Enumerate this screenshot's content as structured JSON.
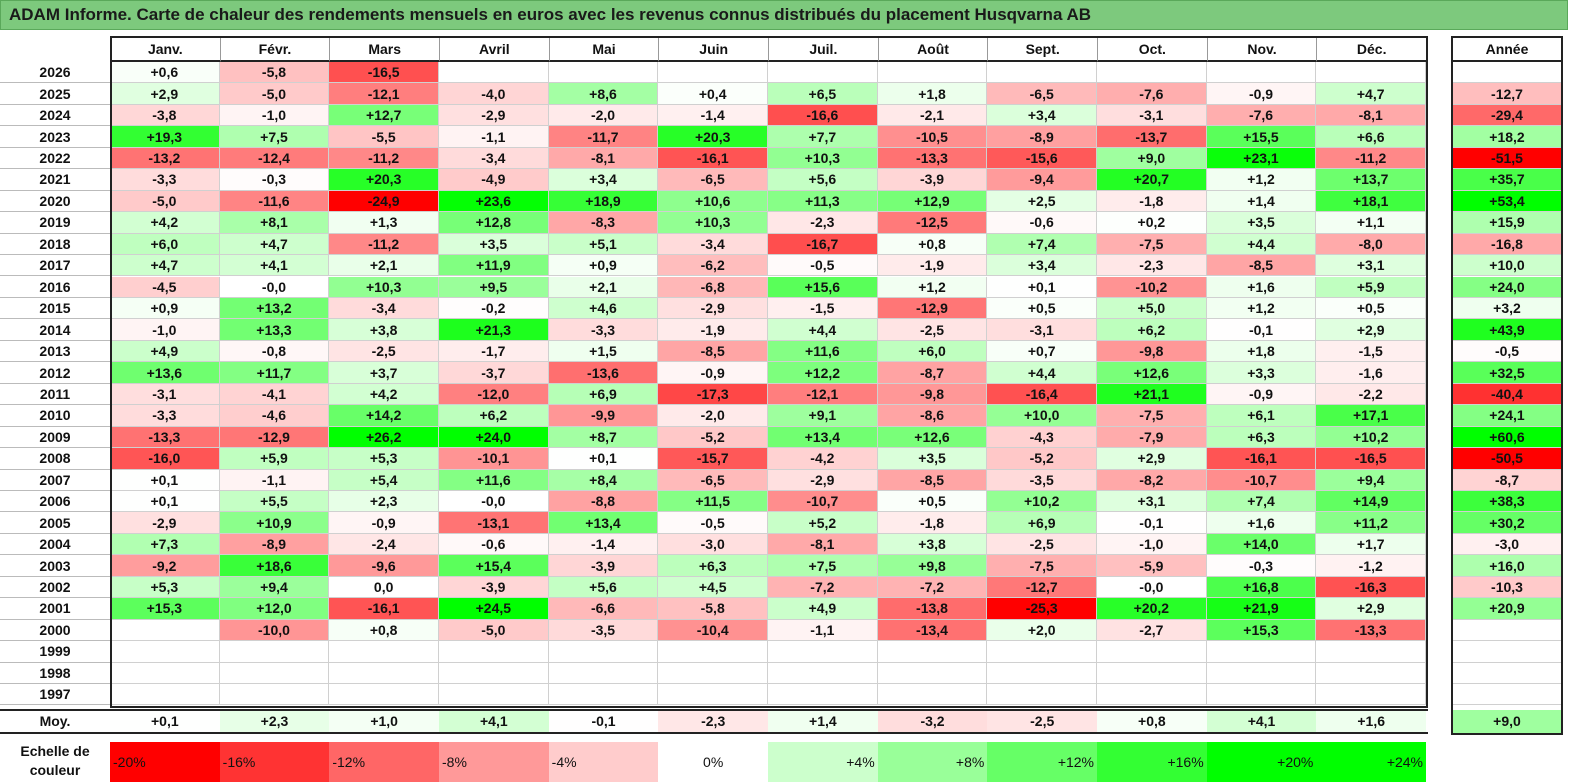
{
  "title": "ADAM Informe. Carte de chaleur des rendements mensuels en euros avec les revenus connus distribués du placement Husqvarna AB",
  "chart_data": {
    "type": "heatmap",
    "title": "ADAM Informe. Carte de chaleur des rendements mensuels en euros avec les revenus connus distribués du placement Husqvarna AB",
    "columns": [
      "Janv.",
      "Févr.",
      "Mars",
      "Avril",
      "Mai",
      "Juin",
      "Juil.",
      "Août",
      "Sept.",
      "Oct.",
      "Nov.",
      "Déc."
    ],
    "year_column_label": "Année",
    "rows": [
      {
        "year": "2026",
        "values": [
          "+0,6",
          "-5,8",
          "-16,5",
          "",
          "",
          "",
          "",
          "",
          "",
          "",
          "",
          ""
        ],
        "annual": ""
      },
      {
        "year": "2025",
        "values": [
          "+2,9",
          "-5,0",
          "-12,1",
          "-4,0",
          "+8,6",
          "+0,4",
          "+6,5",
          "+1,8",
          "-6,5",
          "-7,6",
          "-0,9",
          "+4,7"
        ],
        "annual": "-12,7"
      },
      {
        "year": "2024",
        "values": [
          "-3,8",
          "-1,0",
          "+12,7",
          "-2,9",
          "-2,0",
          "-1,4",
          "-16,6",
          "-2,1",
          "+3,4",
          "-3,1",
          "-7,6",
          "-8,1"
        ],
        "annual": "-29,4"
      },
      {
        "year": "2023",
        "values": [
          "+19,3",
          "+7,5",
          "-5,5",
          "-1,1",
          "-11,7",
          "+20,3",
          "+7,7",
          "-10,5",
          "-8,9",
          "-13,7",
          "+15,5",
          "+6,6"
        ],
        "annual": "+18,2"
      },
      {
        "year": "2022",
        "values": [
          "-13,2",
          "-12,4",
          "-11,2",
          "-3,4",
          "-8,1",
          "-16,1",
          "+10,3",
          "-13,3",
          "-15,6",
          "+9,0",
          "+23,1",
          "-11,2"
        ],
        "annual": "-51,5"
      },
      {
        "year": "2021",
        "values": [
          "-3,3",
          "-0,3",
          "+20,3",
          "-4,9",
          "+3,4",
          "-6,5",
          "+5,6",
          "-3,9",
          "-9,4",
          "+20,7",
          "+1,2",
          "+13,7"
        ],
        "annual": "+35,7"
      },
      {
        "year": "2020",
        "values": [
          "-5,0",
          "-11,6",
          "-24,9",
          "+23,6",
          "+18,9",
          "+10,6",
          "+11,3",
          "+12,9",
          "+2,5",
          "-1,8",
          "+1,4",
          "+18,1"
        ],
        "annual": "+53,4"
      },
      {
        "year": "2019",
        "values": [
          "+4,2",
          "+8,1",
          "+1,3",
          "+12,8",
          "-8,3",
          "+10,3",
          "-2,3",
          "-12,5",
          "-0,6",
          "+0,2",
          "+3,5",
          "+1,1"
        ],
        "annual": "+15,9"
      },
      {
        "year": "2018",
        "values": [
          "+6,0",
          "+4,7",
          "-11,2",
          "+3,5",
          "+5,1",
          "-3,4",
          "-16,7",
          "+0,8",
          "+7,4",
          "-7,5",
          "+4,4",
          "-8,0"
        ],
        "annual": "-16,8"
      },
      {
        "year": "2017",
        "values": [
          "+4,7",
          "+4,1",
          "+2,1",
          "+11,9",
          "+0,9",
          "-6,2",
          "-0,5",
          "-1,9",
          "+3,4",
          "-2,3",
          "-8,5",
          "+3,1"
        ],
        "annual": "+10,0"
      },
      {
        "year": "2016",
        "values": [
          "-4,5",
          "-0,0",
          "+10,3",
          "+9,5",
          "+2,1",
          "-6,8",
          "+15,6",
          "+1,2",
          "+0,1",
          "-10,2",
          "+1,6",
          "+5,9"
        ],
        "annual": "+24,0"
      },
      {
        "year": "2015",
        "values": [
          "+0,9",
          "+13,2",
          "-3,4",
          "-0,2",
          "+4,6",
          "-2,9",
          "-1,5",
          "-12,9",
          "+0,5",
          "+5,0",
          "+1,2",
          "+0,5"
        ],
        "annual": "+3,2"
      },
      {
        "year": "2014",
        "values": [
          "-1,0",
          "+13,3",
          "+3,8",
          "+21,3",
          "-3,3",
          "-1,9",
          "+4,4",
          "-2,5",
          "-3,1",
          "+6,2",
          "-0,1",
          "+2,9"
        ],
        "annual": "+43,9"
      },
      {
        "year": "2013",
        "values": [
          "+4,9",
          "-0,8",
          "-2,5",
          "-1,7",
          "+1,5",
          "-8,5",
          "+11,6",
          "+6,0",
          "+0,7",
          "-9,8",
          "+1,8",
          "-1,5"
        ],
        "annual": "-0,5"
      },
      {
        "year": "2012",
        "values": [
          "+13,6",
          "+11,7",
          "+3,7",
          "-3,7",
          "-13,6",
          "-0,9",
          "+12,2",
          "-8,7",
          "+4,4",
          "+12,6",
          "+3,3",
          "-1,6"
        ],
        "annual": "+32,5"
      },
      {
        "year": "2011",
        "values": [
          "-3,1",
          "-4,1",
          "+4,2",
          "-12,0",
          "+6,9",
          "-17,3",
          "-12,1",
          "-9,8",
          "-16,4",
          "+21,1",
          "-0,9",
          "-2,2"
        ],
        "annual": "-40,4"
      },
      {
        "year": "2010",
        "values": [
          "-3,3",
          "-4,6",
          "+14,2",
          "+6,2",
          "-9,9",
          "-2,0",
          "+9,1",
          "-8,6",
          "+10,0",
          "-7,5",
          "+6,1",
          "+17,1"
        ],
        "annual": "+24,1"
      },
      {
        "year": "2009",
        "values": [
          "-13,3",
          "-12,9",
          "+26,2",
          "+24,0",
          "+8,7",
          "-5,2",
          "+13,4",
          "+12,6",
          "-4,3",
          "-7,9",
          "+6,3",
          "+10,2"
        ],
        "annual": "+60,6"
      },
      {
        "year": "2008",
        "values": [
          "-16,0",
          "+5,9",
          "+5,3",
          "-10,1",
          "+0,1",
          "-15,7",
          "-4,2",
          "+3,5",
          "-5,2",
          "+2,9",
          "-16,1",
          "-16,5"
        ],
        "annual": "-50,5"
      },
      {
        "year": "2007",
        "values": [
          "+0,1",
          "-1,1",
          "+5,4",
          "+11,6",
          "+8,4",
          "-6,5",
          "-2,9",
          "-8,5",
          "-3,5",
          "-8,2",
          "-10,7",
          "+9,4"
        ],
        "annual": "-8,7"
      },
      {
        "year": "2006",
        "values": [
          "+0,1",
          "+5,5",
          "+2,3",
          "-0,0",
          "-8,8",
          "+11,5",
          "-10,7",
          "+0,5",
          "+10,2",
          "+3,1",
          "+7,4",
          "+14,9"
        ],
        "annual": "+38,3"
      },
      {
        "year": "2005",
        "values": [
          "-2,9",
          "+10,9",
          "-0,9",
          "-13,1",
          "+13,4",
          "-0,5",
          "+5,2",
          "-1,8",
          "+6,9",
          "-0,1",
          "+1,6",
          "+11,2"
        ],
        "annual": "+30,2"
      },
      {
        "year": "2004",
        "values": [
          "+7,3",
          "-8,9",
          "-2,4",
          "-0,6",
          "-1,4",
          "-3,0",
          "-8,1",
          "+3,8",
          "-2,5",
          "-1,0",
          "+14,0",
          "+1,7"
        ],
        "annual": "-3,0"
      },
      {
        "year": "2003",
        "values": [
          "-9,2",
          "+18,6",
          "-9,6",
          "+15,4",
          "-3,9",
          "+6,3",
          "+7,5",
          "+9,8",
          "-7,5",
          "-5,9",
          "-0,3",
          "-1,2"
        ],
        "annual": "+16,0"
      },
      {
        "year": "2002",
        "values": [
          "+5,3",
          "+9,4",
          "0,0",
          "-3,9",
          "+5,6",
          "+4,5",
          "-7,2",
          "-7,2",
          "-12,7",
          "-0,0",
          "+16,8",
          "-16,3"
        ],
        "annual": "-10,3"
      },
      {
        "year": "2001",
        "values": [
          "+15,3",
          "+12,0",
          "-16,1",
          "+24,5",
          "-6,6",
          "-5,8",
          "+4,9",
          "-13,8",
          "-25,3",
          "+20,2",
          "+21,9",
          "+2,9"
        ],
        "annual": "+20,9"
      },
      {
        "year": "2000",
        "values": [
          "",
          "-10,0",
          "+0,8",
          "-5,0",
          "-3,5",
          "-10,4",
          "-1,1",
          "-13,4",
          "+2,0",
          "-2,7",
          "+15,3",
          "-13,3"
        ],
        "annual": ""
      },
      {
        "year": "1999",
        "values": [
          "",
          "",
          "",
          "",
          "",
          "",
          "",
          "",
          "",
          "",
          "",
          ""
        ],
        "annual": ""
      },
      {
        "year": "1998",
        "values": [
          "",
          "",
          "",
          "",
          "",
          "",
          "",
          "",
          "",
          "",
          "",
          ""
        ],
        "annual": ""
      },
      {
        "year": "1997",
        "values": [
          "",
          "",
          "",
          "",
          "",
          "",
          "",
          "",
          "",
          "",
          "",
          ""
        ],
        "annual": ""
      }
    ],
    "average_row": {
      "label": "Moy.",
      "values": [
        "+0,1",
        "+2,3",
        "+1,0",
        "+4,1",
        "-0,1",
        "-2,3",
        "+1,4",
        "-3,2",
        "-2,5",
        "+0,8",
        "+4,1",
        "+1,6"
      ],
      "annual": "+9,0"
    },
    "color_scale": {
      "label": "Echelle de couleur",
      "steps": [
        "-20%",
        "-16%",
        "-12%",
        "-8%",
        "-4%",
        "0%",
        "+4%",
        "+8%",
        "+12%",
        "+16%",
        "+20%",
        "+24%"
      ],
      "step_values": [
        -20,
        -16,
        -12,
        -8,
        -4,
        0,
        4,
        8,
        12,
        16,
        20,
        24
      ]
    },
    "colors": {
      "negative_max": "#ff0000",
      "neutral": "#ffffff",
      "positive_max": "#00ff00",
      "title_bar": "#7dc97d"
    }
  }
}
